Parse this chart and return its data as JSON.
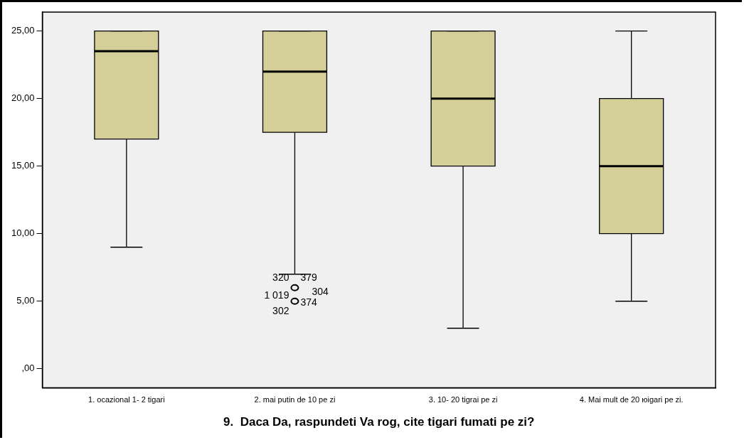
{
  "chart_data": {
    "type": "box",
    "categories": [
      "1. ocazional 1- 2 tigari",
      "2. mai putin de 10 pe zi",
      "3. 10- 20 tigrai pe zi",
      "4. Mai mult de 20 юigari pe zi."
    ],
    "xlabel": "9.  Daca Da, raspundeti Va rog, cite tigari fumati pe zi?",
    "color": "#d4cf99",
    "boxes": [
      {
        "low": 9,
        "q1": 17,
        "median": 23.5,
        "q3": 25,
        "high": 25
      },
      {
        "low": 7,
        "q1": 17.5,
        "median": 22,
        "q3": 25,
        "high": 25,
        "outliers": [
          6,
          5
        ]
      },
      {
        "low": 3,
        "q1": 15,
        "median": 20,
        "q3": 25,
        "high": 25
      },
      {
        "low": 5,
        "q1": 10,
        "median": 15,
        "q3": 20,
        "high": 25
      }
    ],
    "ylim": [
      -1.4,
      26.4
    ],
    "yticks": [
      {
        "value": 0,
        "label": ",00"
      },
      {
        "value": 5,
        "label": "5,00"
      },
      {
        "value": 10,
        "label": "10,00"
      },
      {
        "value": 15,
        "label": "15,00"
      },
      {
        "value": 20,
        "label": "20,00"
      },
      {
        "value": 25,
        "label": "25,00"
      }
    ],
    "annotations": [
      "320",
      "379",
      "304",
      "1 019",
      "374",
      "302"
    ],
    "grid": false,
    "legend": false
  }
}
